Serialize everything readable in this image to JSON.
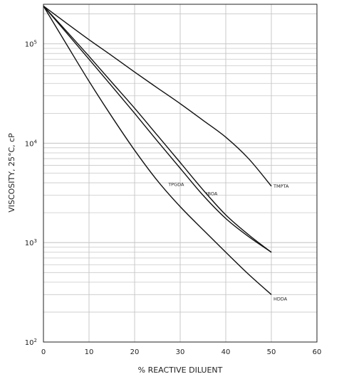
{
  "chart_data": {
    "type": "line",
    "title": "",
    "xlabel": "% REACTIVE DILUENT",
    "ylabel": "VISCOSITY, 25°C, cP",
    "xlim": [
      0,
      60
    ],
    "ylim": [
      100,
      250000
    ],
    "y_scale": "log",
    "grid": true,
    "legend": "none",
    "x_ticks": [
      0,
      10,
      20,
      30,
      40,
      50,
      60
    ],
    "y_ticks": [
      {
        "value": 100,
        "base": "10",
        "exp": "2"
      },
      {
        "value": 1000,
        "base": "10",
        "exp": "3"
      },
      {
        "value": 10000,
        "base": "10",
        "exp": "4"
      },
      {
        "value": 100000,
        "base": "10",
        "exp": "5"
      }
    ],
    "series": [
      {
        "name": "TMPTA",
        "x": [
          0,
          5,
          10,
          15,
          20,
          25,
          30,
          35,
          40,
          45,
          50
        ],
        "y": [
          240000,
          162000,
          110000,
          76000,
          52000,
          36000,
          25000,
          17000,
          11500,
          7000,
          3700
        ]
      },
      {
        "name": "IBOA",
        "x": [
          0,
          5,
          10,
          15,
          20,
          25,
          30,
          35,
          40,
          45,
          50
        ],
        "y": [
          240000,
          135000,
          75000,
          41000,
          22500,
          12000,
          6400,
          3400,
          1900,
          1200,
          800
        ]
      },
      {
        "name": "TPGDA",
        "x": [
          0,
          5,
          10,
          15,
          20,
          25,
          30,
          35,
          40,
          45,
          50
        ],
        "y": [
          240000,
          130000,
          70000,
          37500,
          20000,
          10500,
          5600,
          3000,
          1750,
          1150,
          800
        ]
      },
      {
        "name": "HDDA",
        "x": [
          0,
          5,
          10,
          15,
          20,
          25,
          30,
          35,
          40,
          45,
          50
        ],
        "y": [
          240000,
          100000,
          42000,
          18500,
          8500,
          4200,
          2300,
          1350,
          800,
          480,
          300
        ]
      }
    ],
    "colors": {
      "lines": "#111111",
      "grid": "#c8c8c8",
      "frame": "#222222"
    }
  }
}
